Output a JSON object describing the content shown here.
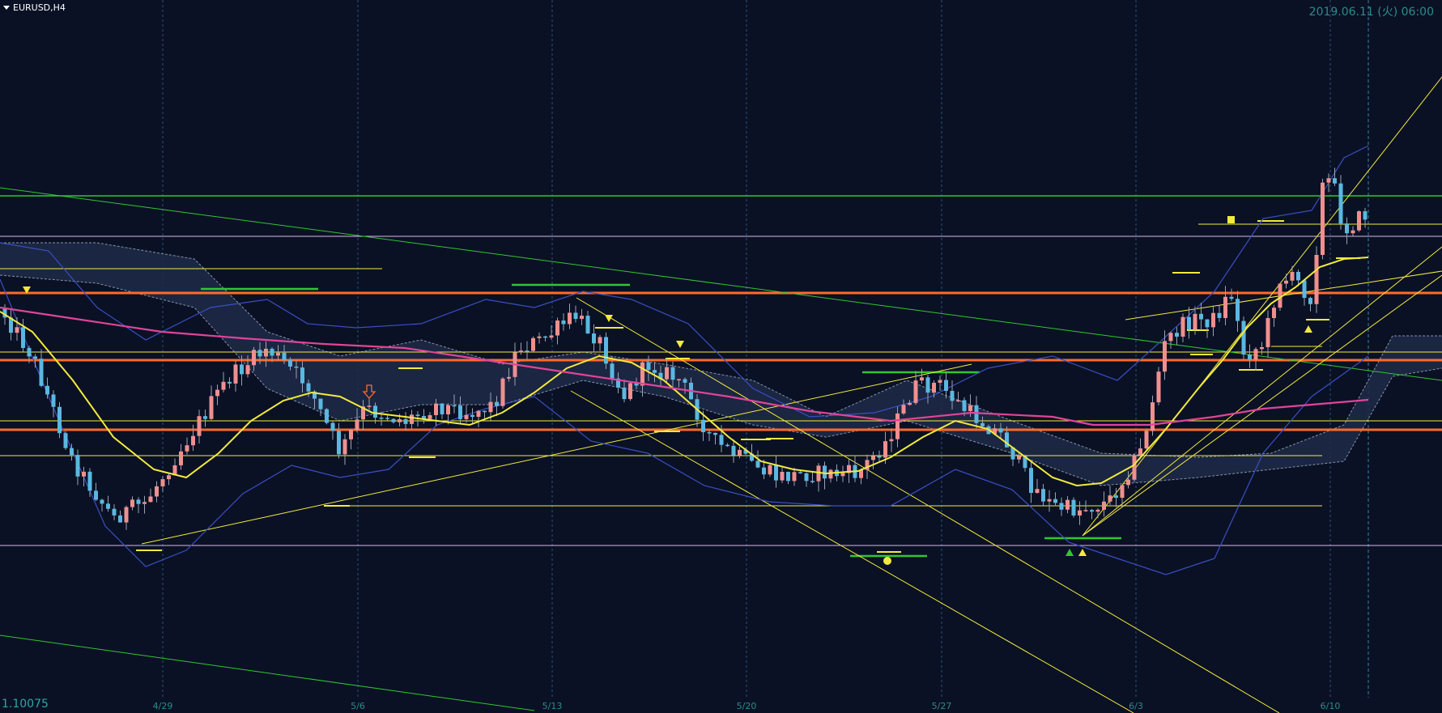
{
  "header": {
    "symbol": "EURUSD,H4",
    "datetime": "2019.06.11 (火) 06:00"
  },
  "price_label": "1.10075",
  "x_axis": {
    "ticks": [
      "4/29",
      "5/6",
      "5/13",
      "5/20",
      "5/27",
      "6/3",
      "6/10"
    ]
  },
  "colors": {
    "background": "#0a1124",
    "bull_candle": "#f08f8f",
    "bear_candle": "#5ab8e0",
    "orange_line": "#ff6a2a",
    "yellow": "#f3ea3c",
    "green": "#31c631",
    "pink_ma": "#e0449a",
    "bollinger": "#3a4fc4",
    "grid": "#2b4f7a",
    "cloud": "#1e2a48"
  },
  "icons": [
    "dropdown-icon",
    "down-arrow-signal-icon",
    "up-arrow-signal-icon",
    "square-signal-icon",
    "circle-signal-icon",
    "orange-down-arrow-icon"
  ],
  "chart_data": {
    "type": "candlestick",
    "symbol": "EURUSD",
    "timeframe": "H4",
    "indicators": [
      "moving average (yellow)",
      "moving average (pink)",
      "bollinger bands",
      "ichimoku cloud"
    ]
  }
}
